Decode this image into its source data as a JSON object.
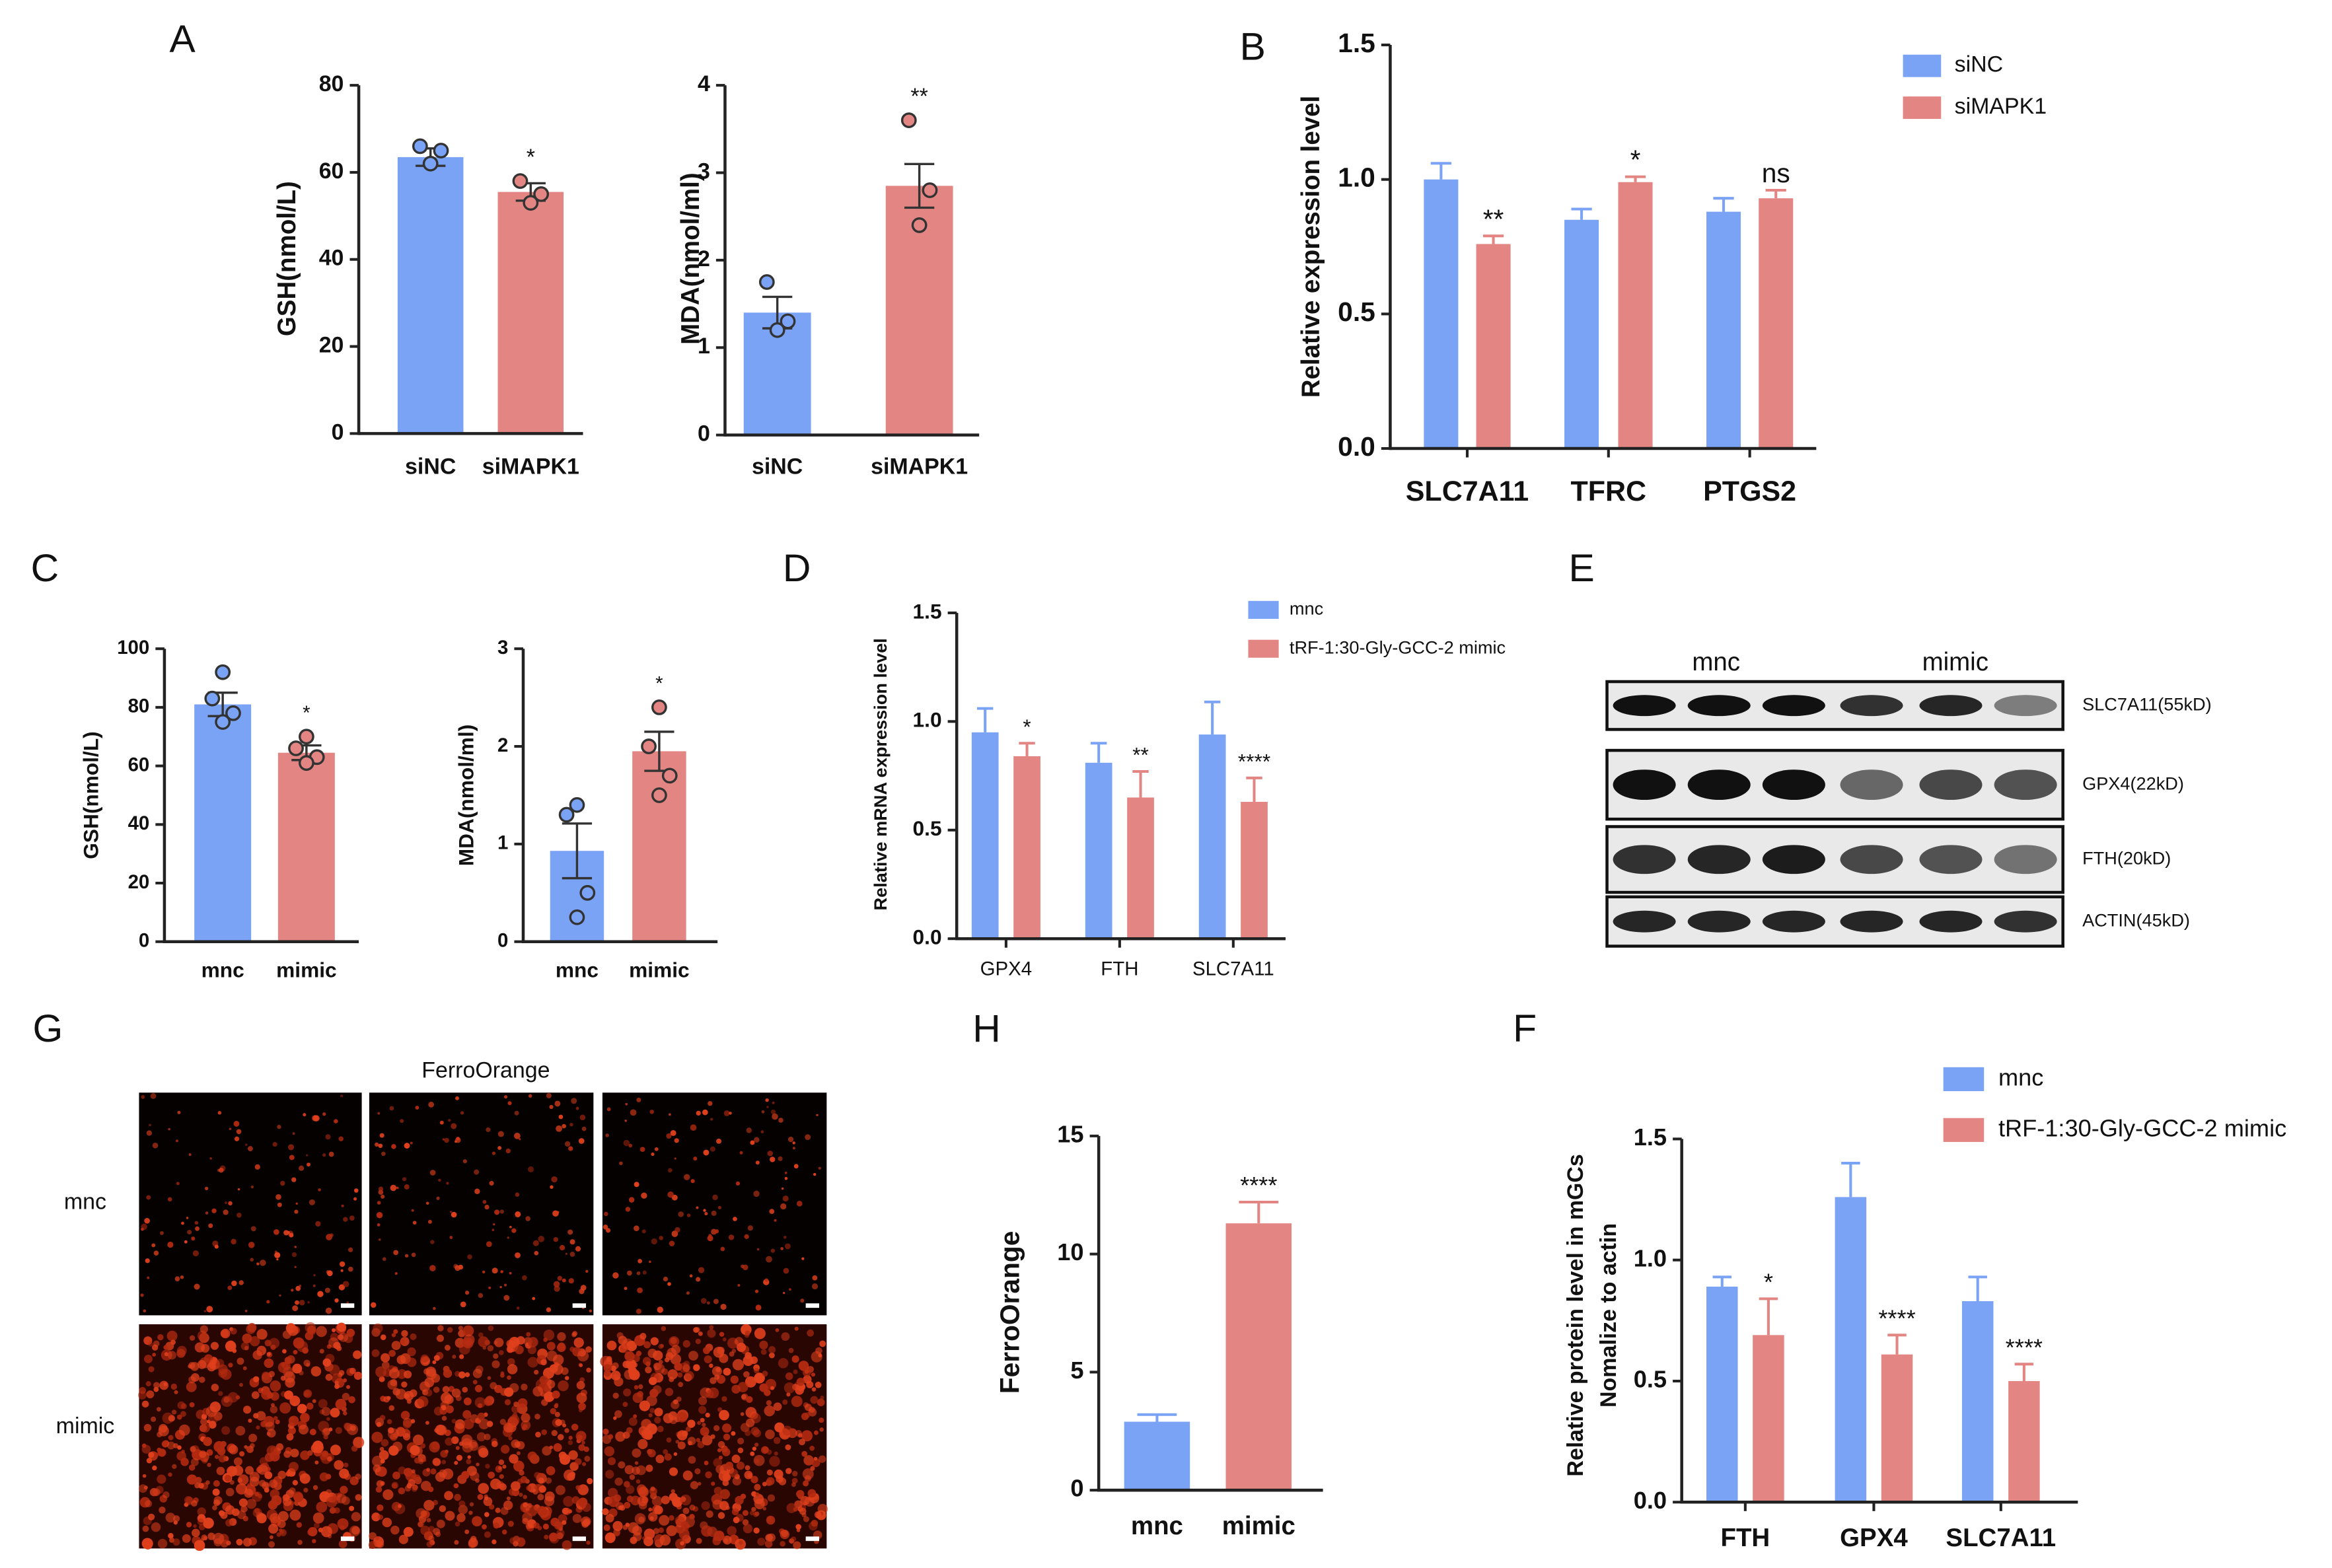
{
  "chart_data": [
    {
      "type": "bar",
      "panel": "A",
      "ylabel": "GSH(nmol/L)",
      "categories": [
        "siNC",
        "siMAPK1"
      ],
      "values": [
        63.5,
        55.5
      ],
      "errors": [
        2,
        2
      ],
      "points": [
        [
          66,
          65,
          62
        ],
        [
          58,
          55,
          53
        ]
      ],
      "annotations": [
        null,
        "*"
      ],
      "colors": [
        "#7ba3f5",
        "#e38683"
      ],
      "ylim": [
        0,
        80
      ],
      "yticks": [
        0,
        20,
        40,
        60,
        80
      ]
    },
    {
      "type": "bar",
      "ylabel": "MDA(nmol/ml)",
      "categories": [
        "siNC",
        "siMAPK1"
      ],
      "values": [
        1.4,
        2.85
      ],
      "errors": [
        0.18,
        0.25
      ],
      "points": [
        [
          1.75,
          1.3,
          1.2
        ],
        [
          3.6,
          2.8,
          2.4
        ]
      ],
      "annotations": [
        null,
        "**"
      ],
      "colors": [
        "#7ba3f5",
        "#e38683"
      ],
      "ylim": [
        0,
        4
      ],
      "yticks": [
        0,
        1,
        2,
        3,
        4
      ]
    },
    {
      "type": "grouped_bar",
      "panel": "B",
      "ylabel": "Relative  expression level",
      "categories": [
        "SLC7A11",
        "TFRC",
        "PTGS2"
      ],
      "series": [
        {
          "name": "siNC",
          "color": "#7ba3f5",
          "values": [
            1.0,
            0.85,
            0.88
          ],
          "errors": [
            0.06,
            0.04,
            0.05
          ]
        },
        {
          "name": "siMAPK1",
          "color": "#e38683",
          "values": [
            0.76,
            0.99,
            0.93
          ],
          "errors": [
            0.03,
            0.02,
            0.03
          ],
          "annotations": [
            "**",
            "*",
            "ns"
          ]
        }
      ],
      "ylim": [
        0,
        1.5
      ],
      "yticks": [
        {
          "value": 0,
          "label": "0.0"
        },
        {
          "value": 0.5,
          "label": "0.5"
        },
        {
          "value": 1,
          "label": "1.0"
        },
        {
          "value": 1.5,
          "label": "1.5"
        }
      ],
      "legend": "top-right"
    },
    {
      "type": "bar",
      "panel": "C",
      "ylabel": "GSH(nmol/L)",
      "categories": [
        "mnc",
        "mimic"
      ],
      "values": [
        81,
        64.5
      ],
      "errors": [
        4,
        2.5
      ],
      "points": [
        [
          92,
          83,
          78,
          75
        ],
        [
          70,
          66,
          63,
          61
        ]
      ],
      "annotations": [
        null,
        "*"
      ],
      "colors": [
        "#7ba3f5",
        "#e38683"
      ],
      "ylim": [
        0,
        100
      ],
      "yticks": [
        0,
        20,
        40,
        60,
        80,
        100
      ]
    },
    {
      "type": "bar",
      "ylabel": "MDA(nmol/ml)",
      "categories": [
        "mnc",
        "mimic"
      ],
      "values": [
        0.93,
        1.95
      ],
      "errors": [
        0.28,
        0.2
      ],
      "points": [
        [
          1.4,
          1.3,
          0.5,
          0.25
        ],
        [
          2.4,
          2.0,
          1.7,
          1.5
        ]
      ],
      "annotations": [
        null,
        "*"
      ],
      "colors": [
        "#7ba3f5",
        "#e38683"
      ],
      "ylim": [
        0,
        3
      ],
      "yticks": [
        0,
        1,
        2,
        3
      ]
    },
    {
      "type": "grouped_bar",
      "panel": "D",
      "ylabel": "Relative mRNA expression level",
      "categories": [
        "GPX4",
        "FTH",
        "SLC7A11"
      ],
      "series": [
        {
          "name": "mnc",
          "color": "#7ba3f5",
          "values": [
            0.95,
            0.81,
            0.94
          ],
          "errors": [
            0.11,
            0.09,
            0.15
          ]
        },
        {
          "name": "tRF-1:30-Gly-GCC-2 mimic",
          "color": "#e38683",
          "values": [
            0.84,
            0.65,
            0.63
          ],
          "errors": [
            0.06,
            0.12,
            0.11
          ],
          "annotations": [
            "*",
            "**",
            "****"
          ]
        }
      ],
      "ylim": [
        0,
        1.5
      ],
      "yticks": [
        {
          "value": 0,
          "label": "0.0"
        },
        {
          "value": 0.5,
          "label": "0.5"
        },
        {
          "value": 1,
          "label": "1.0"
        },
        {
          "value": 1.5,
          "label": "1.5"
        }
      ],
      "legend": "top-right"
    },
    {
      "type": "bar",
      "panel": "H",
      "ylabel": "FerroOrange",
      "categories": [
        "mnc",
        "mimic"
      ],
      "values": [
        2.9,
        11.3
      ],
      "errors": [
        0.3,
        0.9
      ],
      "annotations": [
        null,
        "****"
      ],
      "colors": [
        "#7ba3f5",
        "#e38683"
      ],
      "ylim": [
        0,
        15
      ],
      "yticks": [
        0,
        5,
        10,
        15
      ]
    },
    {
      "type": "grouped_bar",
      "panel": "F",
      "ylabel": [
        "Relative  protein level in mGCs",
        "Nomalize to actin"
      ],
      "categories": [
        "FTH",
        "GPX4",
        "SLC7A11"
      ],
      "series": [
        {
          "name": "mnc",
          "color": "#7ba3f5",
          "values": [
            0.89,
            1.26,
            0.83
          ],
          "errors": [
            0.04,
            0.14,
            0.1
          ]
        },
        {
          "name": "tRF-1:30-Gly-GCC-2 mimic",
          "color": "#e38683",
          "values": [
            0.69,
            0.61,
            0.5
          ],
          "errors": [
            0.15,
            0.08,
            0.07
          ],
          "annotations": [
            "*",
            "****",
            "****"
          ]
        }
      ],
      "ylim": [
        0,
        1.5
      ],
      "yticks": [
        {
          "value": 0,
          "label": "0.0"
        },
        {
          "value": 0.5,
          "label": "0.5"
        },
        {
          "value": 1,
          "label": "1.0"
        },
        {
          "value": 1.5,
          "label": "1.5"
        }
      ],
      "legend": "top-right"
    }
  ],
  "blot": {
    "panel": "E",
    "groups": [
      "mnc",
      "mimic"
    ],
    "rows": [
      "SLC7A11(55kD)",
      "GPX4(22kD)",
      "FTH(20kD)",
      "ACTIN(45kD)"
    ]
  },
  "images": {
    "panel": "G",
    "title": "FerroOrange",
    "rows": [
      "mnc",
      "mimic"
    ]
  }
}
